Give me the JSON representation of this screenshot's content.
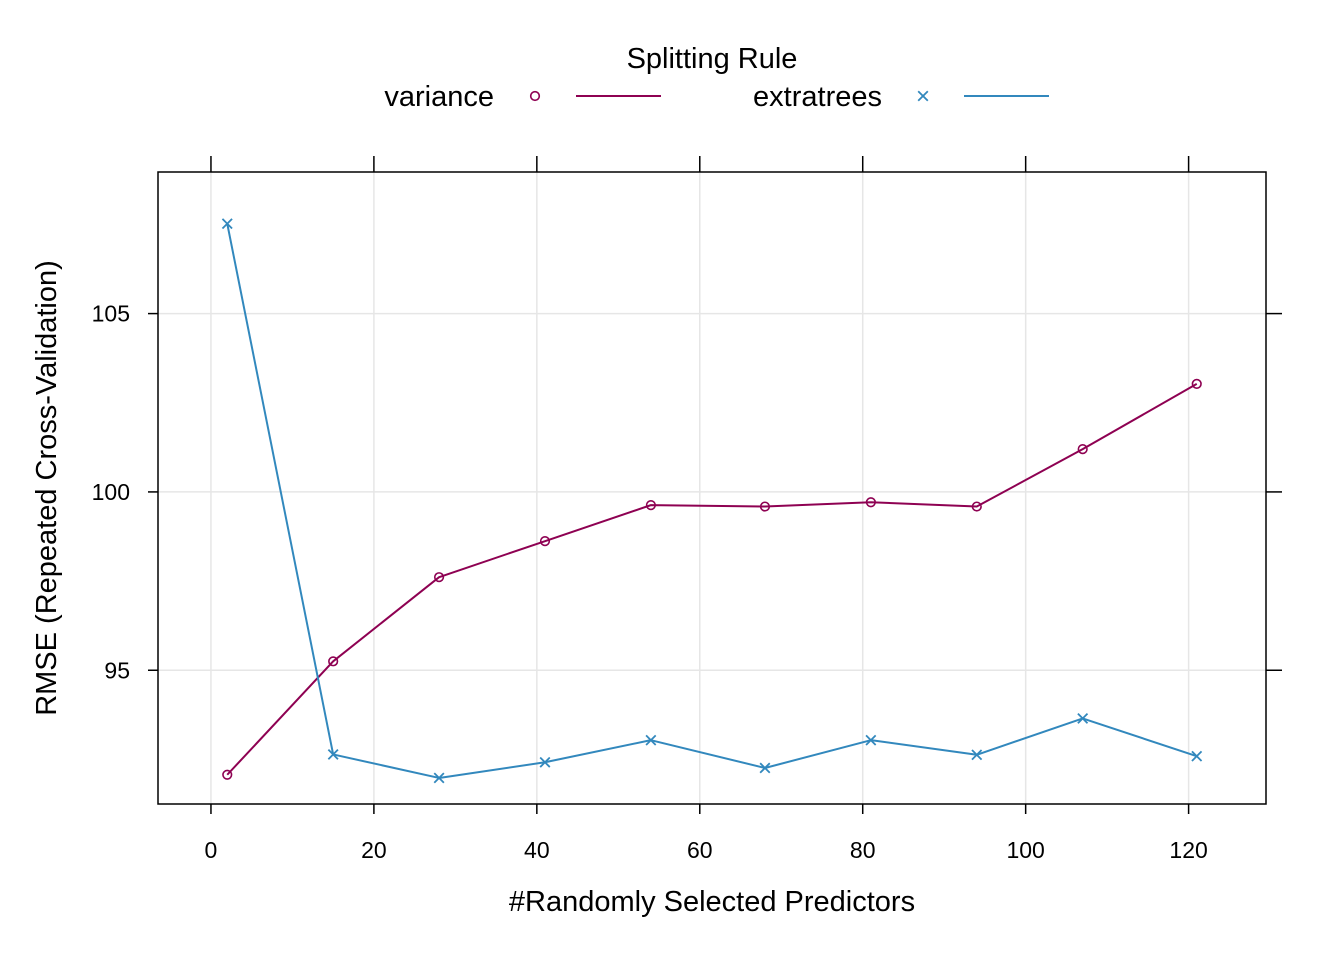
{
  "chart_data": {
    "type": "line",
    "xlabel": "#Randomly Selected Predictors",
    "ylabel": "RMSE (Repeated Cross-Validation)",
    "xlim": [
      -6.5,
      129.5
    ],
    "ylim": [
      91.25,
      108.97
    ],
    "x_ticks": [
      0,
      20,
      40,
      60,
      80,
      100,
      120
    ],
    "x_tick_labels": [
      "0",
      "20",
      "40",
      "60",
      "80",
      "100",
      "120"
    ],
    "y_ticks": [
      95,
      100,
      105
    ],
    "y_tick_labels": [
      "95",
      "100",
      "105"
    ],
    "grid": true,
    "legend": {
      "title": "Splitting Rule",
      "placement": "top"
    },
    "x": [
      2,
      15,
      28,
      41,
      54,
      68,
      81,
      94,
      107,
      121
    ],
    "series": [
      {
        "name": "variance",
        "color": "#8e0152",
        "marker": "circle",
        "values": [
          92.07,
          95.25,
          97.61,
          98.62,
          99.63,
          99.59,
          99.71,
          99.59,
          101.2,
          103.03
        ]
      },
      {
        "name": "extratrees",
        "color": "#3288bd",
        "marker": "x",
        "values": [
          107.52,
          92.64,
          91.98,
          92.42,
          93.04,
          92.26,
          93.04,
          92.63,
          93.65,
          92.59
        ]
      }
    ]
  }
}
